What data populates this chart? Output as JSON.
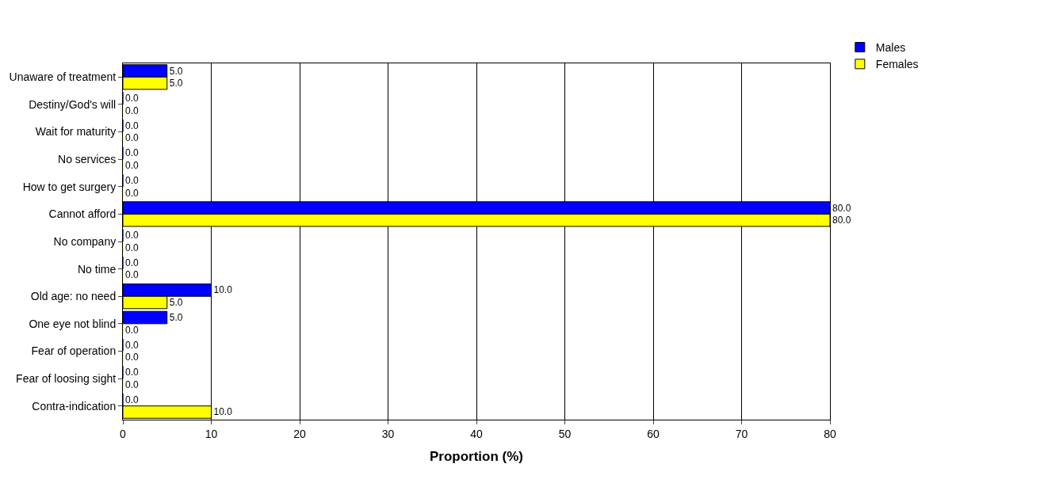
{
  "chart_data": {
    "type": "bar",
    "orientation": "horizontal",
    "xlabel": "Proportion (%)",
    "categories": [
      "Unaware of treatment",
      "Destiny/God's will",
      "Wait for maturity",
      "No services",
      "How to get surgery",
      "Cannot afford",
      "No company",
      "No time",
      "Old age: no need",
      "One eye not blind",
      "Fear of operation",
      "Fear of loosing sight",
      "Contra-indication"
    ],
    "series": [
      {
        "name": "Males",
        "color": "#0000ff",
        "values": [
          5,
          0,
          0,
          0,
          0,
          80,
          0,
          0,
          10,
          5,
          0,
          0,
          0
        ],
        "value_labels": [
          "5.0",
          "0.0",
          "0.0",
          "0.0",
          "0.0",
          "80.0",
          "0.0",
          "0.0",
          "10.0",
          "5.0",
          "0.0",
          "0.0",
          "0.0"
        ]
      },
      {
        "name": "Females",
        "color": "#ffff00",
        "values": [
          5,
          0,
          0,
          0,
          0,
          80,
          0,
          0,
          5,
          0,
          0,
          0,
          10
        ],
        "value_labels": [
          "5.0",
          "0.0",
          "0.0",
          "0.0",
          "0.0",
          "80.0",
          "0.0",
          "0.0",
          "5.0",
          "0.0",
          "0.0",
          "0.0",
          "10.0"
        ]
      }
    ],
    "xlim": [
      0,
      80
    ],
    "xticks": [
      0,
      10,
      20,
      30,
      40,
      50,
      60,
      70,
      80
    ],
    "grid": "x",
    "legend": "top right"
  }
}
